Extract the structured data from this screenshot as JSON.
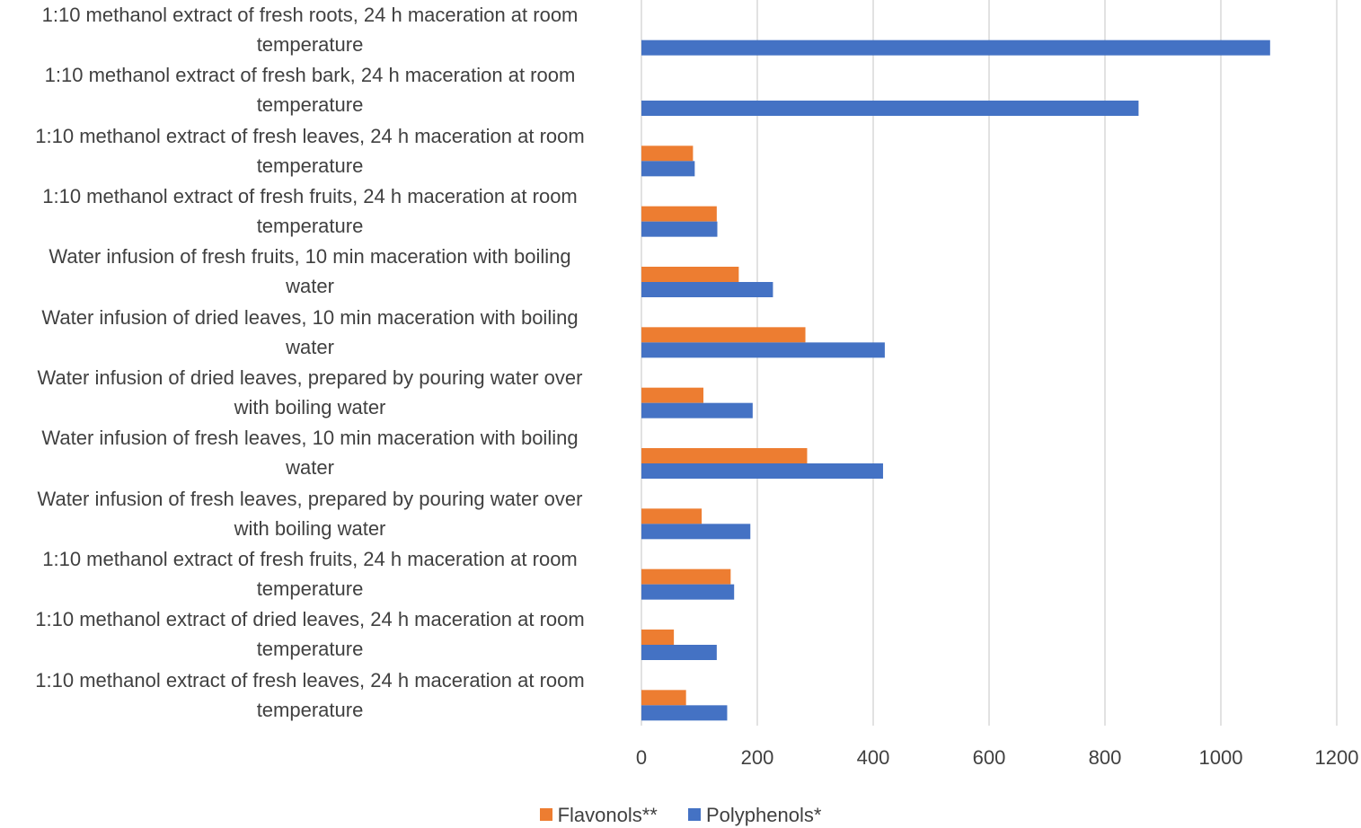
{
  "chart_data": {
    "type": "bar",
    "orientation": "horizontal",
    "categories": [
      "1:10 methanol extract of fresh roots, 24 h maceration at room temperature",
      "1:10 methanol extract of fresh bark, 24 h maceration at room temperature",
      "1:10 methanol extract of fresh leaves, 24 h maceration at room temperature",
      "1:10 methanol extract of fresh fruits, 24 h maceration at room temperature",
      "Water infusion of fresh fruits, 10 min maceration with boiling water",
      "Water infusion of dried leaves, 10 min maceration with boiling water",
      "Water infusion of dried leaves, prepared by pouring water over with boiling water",
      "Water infusion of fresh leaves, 10 min maceration with boiling water",
      "Water infusion of fresh leaves, prepared by pouring water over with boiling water",
      "1:10 methanol extract of fresh fruits, 24 h maceration at room temperature",
      "1:10 methanol extract of dried leaves, 24 h maceration at room temperature",
      "1:10 methanol extract of fresh leaves, 24 h maceration at room temperature"
    ],
    "label_lines": [
      [
        "1:10 methanol extract of fresh roots, 24 h maceration at room",
        "temperature"
      ],
      [
        "1:10 methanol extract of fresh bark, 24 h maceration at room",
        "temperature"
      ],
      [
        "1:10 methanol extract of fresh leaves, 24 h maceration at room",
        "temperature"
      ],
      [
        "1:10 methanol extract of fresh fruits, 24 h maceration at room",
        "temperature"
      ],
      [
        "Water infusion of fresh fruits, 10 min maceration with boiling",
        "water"
      ],
      [
        "Water infusion of dried leaves, 10 min maceration with boiling",
        "water"
      ],
      [
        "Water infusion of dried leaves, prepared by pouring water over",
        "with boiling water"
      ],
      [
        "Water infusion of fresh leaves, 10 min maceration with boiling",
        "water"
      ],
      [
        "Water infusion of fresh leaves, prepared by pouring water over",
        "with boiling water"
      ],
      [
        "1:10 methanol extract of fresh fruits, 24 h maceration at room",
        "temperature"
      ],
      [
        "1:10 methanol extract of dried leaves, 24 h maceration at room",
        "temperature"
      ],
      [
        "1:10 methanol extract of fresh leaves, 24 h maceration at room",
        "temperature"
      ]
    ],
    "series": [
      {
        "name": "Flavonols**",
        "color": "#ED7D31",
        "values": [
          null,
          null,
          89,
          130,
          168,
          283,
          107,
          286,
          104,
          154,
          56,
          77
        ]
      },
      {
        "name": "Polyphenols*",
        "color": "#4472C4",
        "values": [
          1085,
          858,
          92,
          131,
          227,
          420,
          192,
          417,
          188,
          160,
          130,
          148
        ]
      }
    ],
    "xlim": [
      0,
      1200
    ],
    "xticks": [
      "0",
      "200",
      "400",
      "600",
      "800",
      "1000",
      "1200"
    ],
    "grid": true,
    "legend_position": "bottom",
    "title": "",
    "xlabel": "",
    "ylabel": ""
  }
}
